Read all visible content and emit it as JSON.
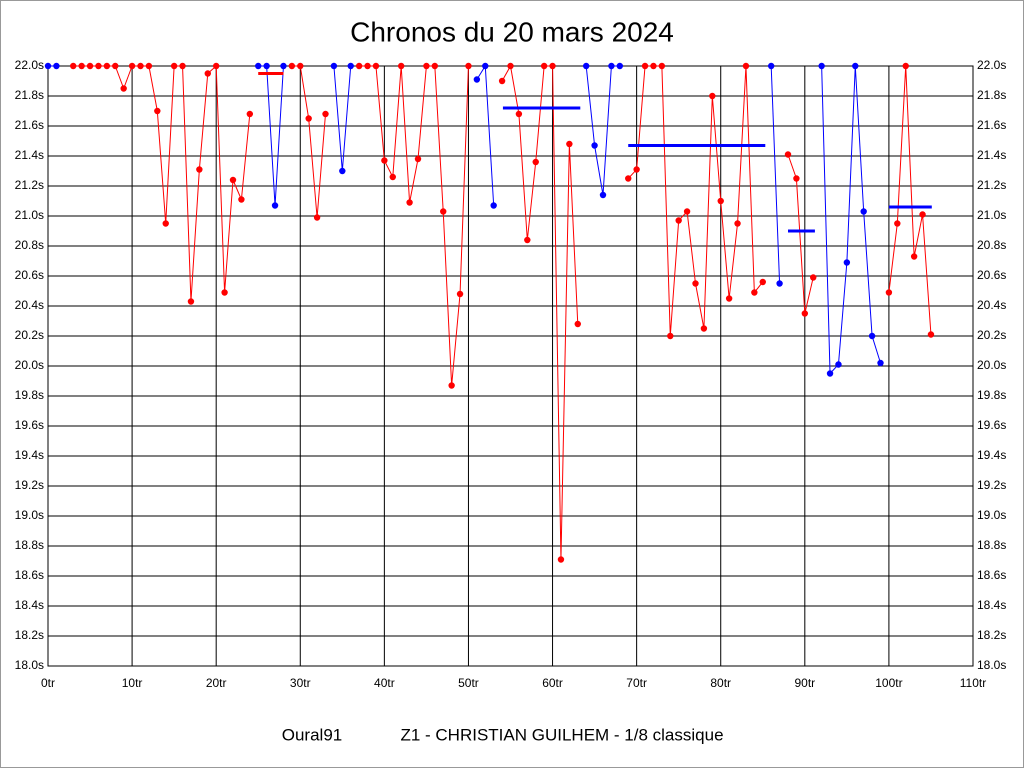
{
  "chart_data": {
    "type": "line",
    "title": "Chronos du 20 mars 2024",
    "footer": [
      "Oural91",
      "Z1 - CHRISTIAN GUILHEM - 1/8 classique"
    ],
    "xlim": [
      0,
      110
    ],
    "ylim": [
      18.0,
      22.0
    ],
    "grid": true,
    "xticks": [
      {
        "value": 0,
        "label": "0tr"
      },
      {
        "value": 10,
        "label": "10tr"
      },
      {
        "value": 20,
        "label": "20tr"
      },
      {
        "value": 30,
        "label": "30tr"
      },
      {
        "value": 40,
        "label": "40tr"
      },
      {
        "value": 50,
        "label": "50tr"
      },
      {
        "value": 60,
        "label": "60tr"
      },
      {
        "value": 70,
        "label": "70tr"
      },
      {
        "value": 80,
        "label": "80tr"
      },
      {
        "value": 90,
        "label": "90tr"
      },
      {
        "value": 100,
        "label": "100tr"
      },
      {
        "value": 110,
        "label": "110tr"
      }
    ],
    "yticks": [
      {
        "value": 18.0,
        "label": "18.0s"
      },
      {
        "value": 18.2,
        "label": "18.2s"
      },
      {
        "value": 18.4,
        "label": "18.4s"
      },
      {
        "value": 18.6,
        "label": "18.6s"
      },
      {
        "value": 18.8,
        "label": "18.8s"
      },
      {
        "value": 19.0,
        "label": "19.0s"
      },
      {
        "value": 19.2,
        "label": "19.2s"
      },
      {
        "value": 19.4,
        "label": "19.4s"
      },
      {
        "value": 19.6,
        "label": "19.6s"
      },
      {
        "value": 19.8,
        "label": "19.8s"
      },
      {
        "value": 20.0,
        "label": "20.0s"
      },
      {
        "value": 20.2,
        "label": "20.2s"
      },
      {
        "value": 20.4,
        "label": "20.4s"
      },
      {
        "value": 20.6,
        "label": "20.6s"
      },
      {
        "value": 20.8,
        "label": "20.8s"
      },
      {
        "value": 21.0,
        "label": "21.0s"
      },
      {
        "value": 21.2,
        "label": "21.2s"
      },
      {
        "value": 21.4,
        "label": "21.4s"
      },
      {
        "value": 21.6,
        "label": "21.6s"
      },
      {
        "value": 21.8,
        "label": "21.8s"
      },
      {
        "value": 22.0,
        "label": "22.0s"
      }
    ],
    "series": [
      {
        "color": "#0000ff",
        "x": [
          0,
          1
        ],
        "values": [
          22,
          22
        ]
      },
      {
        "color": "#ff0000",
        "x": [
          3,
          4,
          5,
          6,
          7,
          8,
          9,
          10,
          11,
          12,
          13,
          14,
          15,
          16,
          17,
          18,
          19,
          20,
          21,
          22,
          23,
          24
        ],
        "values": [
          22,
          22,
          22,
          22,
          22,
          22,
          21.85,
          22,
          22,
          22,
          21.7,
          20.95,
          22,
          22,
          20.43,
          21.31,
          21.95,
          22,
          20.49,
          21.24,
          21.11,
          21.68
        ]
      },
      {
        "color": "#0000ff",
        "x": [
          25,
          26,
          27,
          28
        ],
        "values": [
          22,
          22,
          21.07,
          22
        ]
      },
      {
        "color": "#ff0000",
        "x": [
          29,
          30,
          31,
          32,
          33
        ],
        "values": [
          22,
          22,
          21.65,
          20.99,
          21.68
        ]
      },
      {
        "color": "#0000ff",
        "x": [
          34,
          35,
          36
        ],
        "values": [
          22,
          21.3,
          22
        ]
      },
      {
        "color": "#ff0000",
        "x": [
          37,
          38,
          39,
          40,
          41,
          42,
          43,
          44,
          45,
          46,
          47,
          48,
          49,
          50
        ],
        "values": [
          22,
          22,
          22,
          21.37,
          21.26,
          22,
          21.09,
          21.38,
          22,
          22,
          21.03,
          19.87,
          20.48,
          22
        ]
      },
      {
        "color": "#0000ff",
        "x": [
          51,
          52,
          53
        ],
        "values": [
          21.91,
          22,
          21.07
        ]
      },
      {
        "color": "#ff0000",
        "x": [
          54,
          55,
          56,
          57,
          58,
          59,
          60,
          61,
          62,
          63
        ],
        "values": [
          21.9,
          22,
          21.68,
          20.84,
          21.36,
          22,
          22,
          18.71,
          21.48,
          20.28
        ]
      },
      {
        "color": "#0000ff",
        "x": [
          64,
          65,
          66,
          67,
          68
        ],
        "values": [
          22,
          21.47,
          21.14,
          22,
          22
        ]
      },
      {
        "color": "#ff0000",
        "x": [
          69,
          70,
          71,
          72,
          73,
          74,
          75,
          76,
          77,
          78,
          79,
          80,
          81,
          82,
          83,
          84,
          85
        ],
        "values": [
          21.25,
          21.31,
          22,
          22,
          22,
          20.2,
          20.97,
          21.03,
          20.55,
          20.25,
          21.8,
          21.1,
          20.45,
          20.95,
          22,
          20.49,
          20.56
        ]
      },
      {
        "color": "#0000ff",
        "x": [
          86,
          87
        ],
        "values": [
          22,
          20.55
        ]
      },
      {
        "color": "#ff0000",
        "x": [
          88,
          89,
          90,
          91
        ],
        "values": [
          21.41,
          21.25,
          20.35,
          20.59
        ]
      },
      {
        "color": "#0000ff",
        "x": [
          92,
          93,
          94,
          95,
          96,
          97,
          98,
          99
        ],
        "values": [
          22,
          19.95,
          20.01,
          20.69,
          22,
          21.03,
          20.2,
          20.02
        ]
      },
      {
        "color": "#ff0000",
        "x": [
          100,
          101,
          102,
          103,
          104,
          105
        ],
        "values": [
          20.49,
          20.95,
          22,
          20.73,
          21.01,
          20.21
        ]
      }
    ],
    "averages": [
      {
        "color": "#ff0000",
        "x": [
          25,
          28
        ],
        "value": 21.95
      },
      {
        "color": "#0000ff",
        "x": [
          54.1,
          63.3
        ],
        "value": 21.72
      },
      {
        "color": "#0000ff",
        "x": [
          69,
          85.3
        ],
        "value": 21.47
      },
      {
        "color": "#0000ff",
        "x": [
          88,
          91.2
        ],
        "value": 20.9
      },
      {
        "color": "#0000ff",
        "x": [
          100,
          105.1
        ],
        "value": 21.06
      }
    ]
  }
}
